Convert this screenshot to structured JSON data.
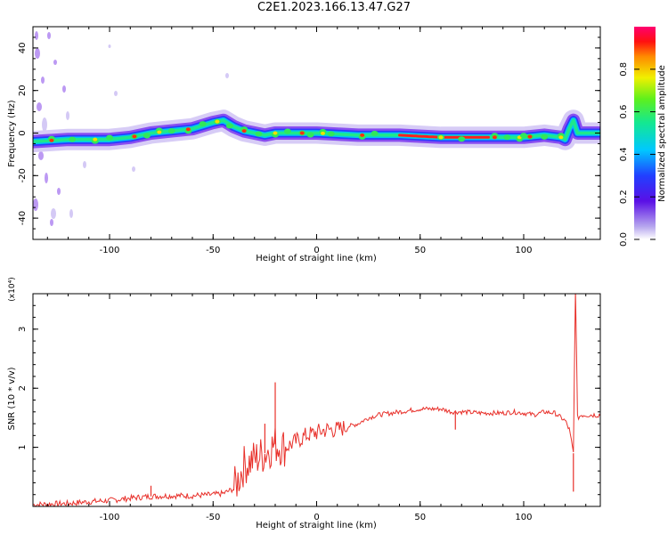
{
  "title": "C2E1.2023.166.13.47.G27",
  "chart_data": [
    {
      "type": "heatmap",
      "xlabel": "Height of straight line (km)",
      "ylabel": "Frequency (Hz)",
      "xlim": [
        -137,
        137
      ],
      "ylim": [
        -50,
        50
      ],
      "xticks": [
        -100,
        -50,
        0,
        50,
        100
      ],
      "yticks": [
        -40,
        -20,
        0,
        20,
        40
      ],
      "colorbar": {
        "label": "Normalized spectral amplitude",
        "range": [
          0,
          1
        ],
        "ticks": [
          "0.0",
          "0.2",
          "0.4",
          "0.6",
          "0.8"
        ]
      },
      "ridge": {
        "x": [
          -137,
          -120,
          -100,
          -90,
          -80,
          -70,
          -60,
          -50,
          -45,
          -40,
          -35,
          -30,
          -25,
          -20,
          -10,
          0,
          20,
          40,
          60,
          80,
          100,
          110,
          118,
          120,
          122,
          124,
          126,
          137
        ],
        "frequency": [
          -4,
          -3,
          -3,
          -2,
          0,
          1,
          2,
          5,
          6,
          3,
          1,
          0,
          -1,
          0,
          0,
          0,
          -1,
          -1,
          -2,
          -2,
          -2,
          -1,
          -2,
          -3,
          2,
          6,
          0,
          0
        ]
      }
    },
    {
      "type": "line",
      "xlabel": "Height of straight line (km)",
      "ylabel": "SNR (10 * v/v)",
      "multiplier": "(x10⁴)",
      "xlim": [
        -137,
        137
      ],
      "ylim": [
        0,
        3.6
      ],
      "xticks": [
        -100,
        -50,
        0,
        50,
        100
      ],
      "yticks": [
        1,
        2,
        3
      ],
      "color": "#e8302a",
      "series": [
        {
          "x": [
            -137,
            -120,
            -110,
            -100,
            -90,
            -80,
            -70,
            -60,
            -50,
            -45,
            -40,
            -38,
            -35,
            -30,
            -25,
            -22,
            -20,
            -15,
            -10,
            -5,
            0,
            5,
            10,
            15,
            20,
            25,
            30,
            40,
            50,
            60,
            65,
            70,
            80,
            90,
            95,
            100,
            105,
            110,
            115,
            120,
            122,
            124,
            125,
            126,
            128,
            137
          ],
          "values": [
            0.03,
            0.05,
            0.08,
            0.1,
            0.14,
            0.17,
            0.18,
            0.18,
            0.2,
            0.22,
            0.3,
            0.45,
            0.7,
            0.8,
            0.9,
            1.0,
            1.05,
            1.0,
            1.1,
            1.2,
            1.25,
            1.3,
            1.3,
            1.35,
            1.4,
            1.5,
            1.55,
            1.6,
            1.65,
            1.65,
            1.6,
            1.6,
            1.58,
            1.58,
            1.6,
            1.58,
            1.55,
            1.6,
            1.58,
            1.45,
            1.3,
            0.9,
            3.7,
            1.5,
            1.55,
            1.55
          ]
        }
      ],
      "spikes": [
        {
          "x": -20,
          "value": 2.1
        },
        {
          "x": -25,
          "value": 1.4
        },
        {
          "x": -80,
          "value": 0.35
        },
        {
          "x": 67,
          "value": 1.3
        },
        {
          "x": 125,
          "value": 3.6
        },
        {
          "x": 124,
          "value": 0.25
        }
      ]
    }
  ]
}
